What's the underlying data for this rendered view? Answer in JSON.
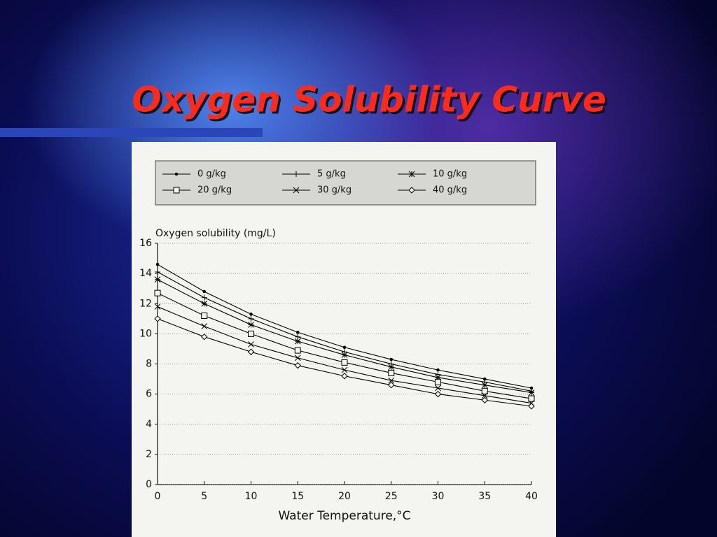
{
  "chart_data": {
    "type": "line",
    "title": "Oxygen Solubility Curve",
    "y_label": "Oxygen solubility (mg/L)",
    "x_label": "Water Temperature,°C",
    "x": [
      0,
      5,
      10,
      15,
      20,
      25,
      30,
      35,
      40
    ],
    "xlim": [
      0,
      40
    ],
    "xticks": [
      0,
      5,
      10,
      15,
      20,
      25,
      30,
      35,
      40
    ],
    "ylim": [
      0,
      16
    ],
    "yticks": [
      0,
      2,
      4,
      6,
      8,
      10,
      12,
      14,
      16
    ],
    "grid": true,
    "legend": "top",
    "series": [
      {
        "name": "0 g/kg",
        "color": "#000000",
        "marker": "dot",
        "values": [
          14.6,
          12.8,
          11.3,
          10.1,
          9.1,
          8.3,
          7.6,
          7.0,
          6.4
        ]
      },
      {
        "name": "5 g/kg",
        "color": "#000000",
        "marker": "plus",
        "values": [
          14.1,
          12.4,
          11.0,
          9.8,
          8.8,
          8.0,
          7.3,
          6.8,
          6.2
        ]
      },
      {
        "name": "10 g/kg",
        "color": "#000000",
        "marker": "star",
        "values": [
          13.6,
          12.0,
          10.6,
          9.5,
          8.6,
          7.8,
          7.1,
          6.6,
          6.1
        ]
      },
      {
        "name": "20 g/kg",
        "color": "#000000",
        "marker": "square",
        "values": [
          12.7,
          11.2,
          10.0,
          8.9,
          8.1,
          7.4,
          6.8,
          6.2,
          5.7
        ]
      },
      {
        "name": "30 g/kg",
        "color": "#000000",
        "marker": "x",
        "values": [
          11.8,
          10.5,
          9.3,
          8.4,
          7.6,
          6.9,
          6.4,
          5.9,
          5.4
        ]
      },
      {
        "name": "40 g/kg",
        "color": "#000000",
        "marker": "diamond",
        "values": [
          11.0,
          9.8,
          8.8,
          7.9,
          7.2,
          6.6,
          6.0,
          5.6,
          5.2
        ]
      }
    ]
  }
}
